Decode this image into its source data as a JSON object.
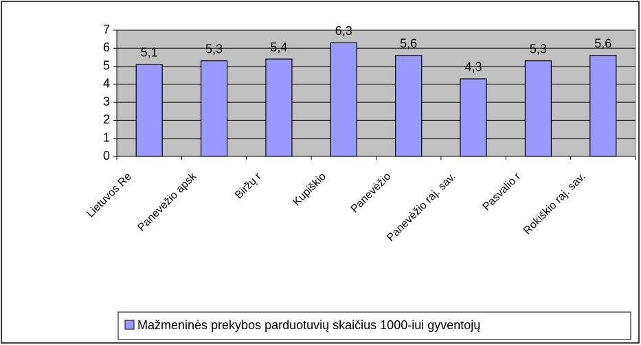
{
  "chart_data": {
    "type": "bar",
    "categories": [
      "Lietuvos Re",
      "Panevėžio apsk",
      "Biržų r",
      "Kupiškio",
      "Panevėžio",
      "Panevėžio raj. sav.",
      "Pasvalio r",
      "Rokiškio raj. sav."
    ],
    "series": [
      {
        "name": "Mažmeninės prekybos parduotuvių skaičius 1000-iui gyventojų",
        "color": "#9999ff",
        "values": [
          5.1,
          5.3,
          5.4,
          6.3,
          5.6,
          4.3,
          5.3,
          5.6
        ],
        "value_labels": [
          "5,1",
          "5,3",
          "5,4",
          "6,3",
          "5,6",
          "4,3",
          "5,3",
          "5,6"
        ]
      }
    ],
    "ylim": [
      0,
      7
    ],
    "yticks": [
      0,
      1,
      2,
      3,
      4,
      5,
      6,
      7
    ],
    "grid": true,
    "legend": "bottom"
  }
}
